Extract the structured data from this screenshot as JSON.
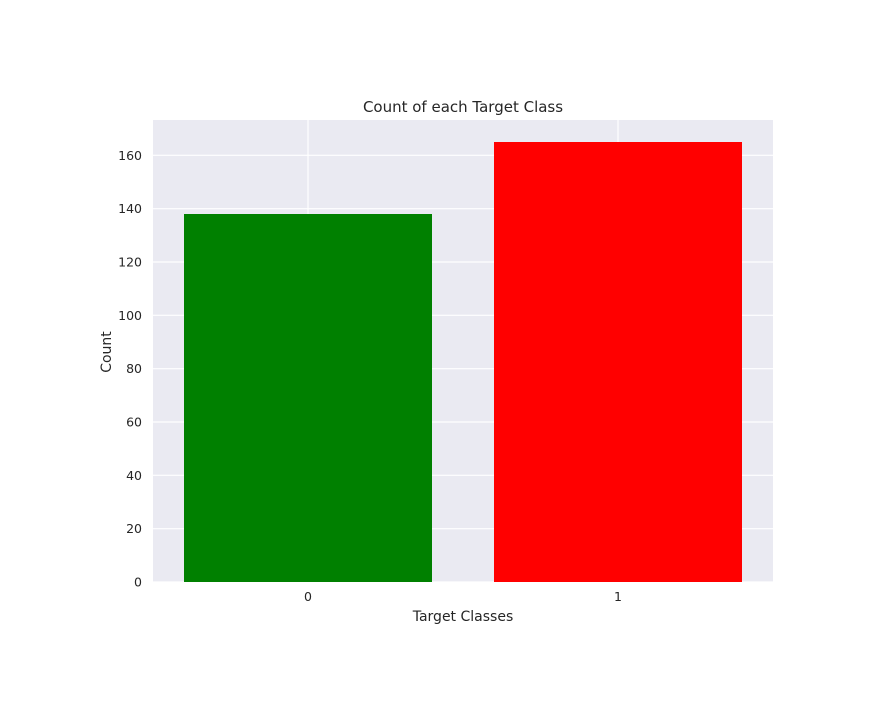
{
  "chart_data": {
    "type": "bar",
    "title": "Count of each Target Class",
    "xlabel": "Target Classes",
    "ylabel": "Count",
    "categories": [
      "0",
      "1"
    ],
    "values": [
      138,
      165
    ],
    "bar_colors": [
      "#008000",
      "#ff0000"
    ],
    "ylim": [
      0,
      173.25
    ],
    "yticks": [
      0,
      20,
      40,
      60,
      80,
      100,
      120,
      140,
      160
    ],
    "grid": true,
    "background_color": "#eaeaf2",
    "grid_color": "#ffffff",
    "legend": "none"
  }
}
